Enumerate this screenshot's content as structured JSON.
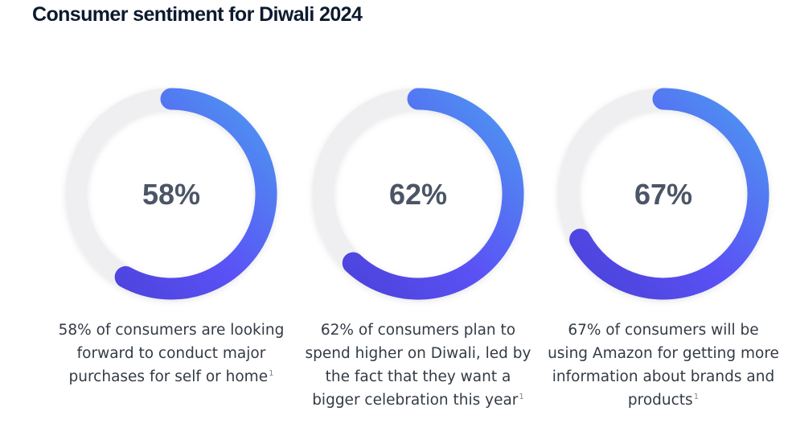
{
  "title": "Consumer sentiment for Diwali 2024",
  "colors": {
    "track": "#efeff2",
    "grad_start": "#4a3fd6",
    "grad_mid": "#5a52f5",
    "grad_end": "#4d9af0",
    "value_text": "#4b5566"
  },
  "chart_data": [
    {
      "type": "pie",
      "values": [
        58
      ],
      "value_label": "58%",
      "description": "58% of consumers are looking forward to conduct major purchases for self or home",
      "footnote": "1"
    },
    {
      "type": "pie",
      "values": [
        62
      ],
      "value_label": "62%",
      "description": "62% of consumers plan to spend higher on Diwali, led by the fact that they want a bigger celebration this year",
      "footnote": "1"
    },
    {
      "type": "pie",
      "values": [
        67
      ],
      "value_label": "67%",
      "description": "67% of consumers will be using Amazon for getting more information about brands and products",
      "footnote": "1"
    }
  ]
}
